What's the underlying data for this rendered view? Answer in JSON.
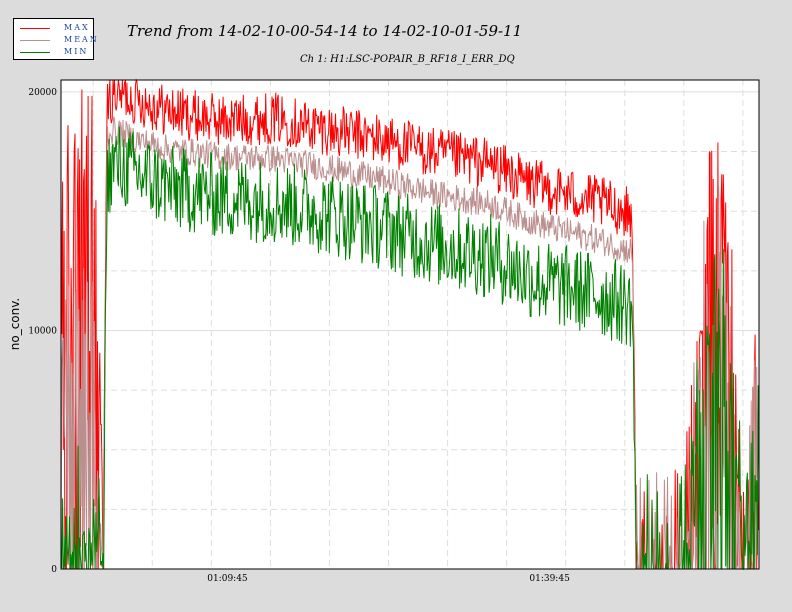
{
  "legend": {
    "items": [
      {
        "label": "MAX",
        "color": "#ff0000"
      },
      {
        "label": "MEAN",
        "color": "#bc8f8f"
      },
      {
        "label": "MIN",
        "color": "#008000"
      }
    ]
  },
  "chart_data": {
    "type": "line",
    "title": "Trend from 14-02-10-00-54-14 to 14-02-10-01-59-11",
    "subtitle": "Ch 1: H1:LSC-POPAIR_B_RF18_I_ERR_DQ",
    "ylabel": "no_conv.",
    "xlabel": "",
    "x_range_minutes": [
      0,
      65
    ],
    "x_ticks": [
      {
        "label": "01:09:45",
        "minute": 15.5
      },
      {
        "label": "01:39:45",
        "minute": 45.5
      }
    ],
    "ylim": [
      0,
      20500
    ],
    "y_ticks": [
      0,
      10000,
      20000
    ],
    "grid": true,
    "legend_position": "top-left",
    "series": [
      {
        "name": "MAX",
        "color": "#ff0000",
        "x": [
          0,
          3,
          3.9,
          4.3,
          5,
          7,
          10,
          15,
          20,
          25,
          30,
          35,
          40,
          43,
          45,
          50,
          53.2,
          53.6,
          58,
          60,
          62,
          63.5,
          65
        ],
        "y": [
          15000,
          16500,
          500,
          19500,
          20000,
          19700,
          19200,
          18800,
          18900,
          18400,
          18000,
          17400,
          17000,
          16300,
          16000,
          15400,
          14900,
          0,
          0,
          13500,
          14500,
          0,
          9000
        ]
      },
      {
        "name": "MEAN",
        "color": "#bc8f8f",
        "x": [
          0,
          3,
          3.9,
          4.3,
          5,
          7,
          10,
          15,
          20,
          25,
          30,
          35,
          40,
          43,
          45,
          50,
          53.2,
          53.6,
          58,
          60,
          62,
          63.5,
          65
        ],
        "y": [
          8000,
          9000,
          300,
          18200,
          18400,
          18000,
          17600,
          17300,
          17200,
          16800,
          16300,
          15700,
          15300,
          14700,
          14400,
          13800,
          13300,
          0,
          0,
          11500,
          12500,
          0,
          7000
        ]
      },
      {
        "name": "MIN",
        "color": "#008000",
        "x": [
          0,
          3,
          3.9,
          4.3,
          5,
          7,
          10,
          15,
          20,
          25,
          30,
          35,
          40,
          43,
          45,
          50,
          53.2,
          53.6,
          58,
          60,
          62,
          63.5,
          65
        ],
        "y": [
          1000,
          1500,
          100,
          16500,
          17000,
          16600,
          16000,
          15600,
          15400,
          14900,
          14300,
          13600,
          13100,
          12400,
          12000,
          11500,
          11000,
          0,
          0,
          9000,
          10000,
          0,
          4000
        ]
      }
    ]
  }
}
